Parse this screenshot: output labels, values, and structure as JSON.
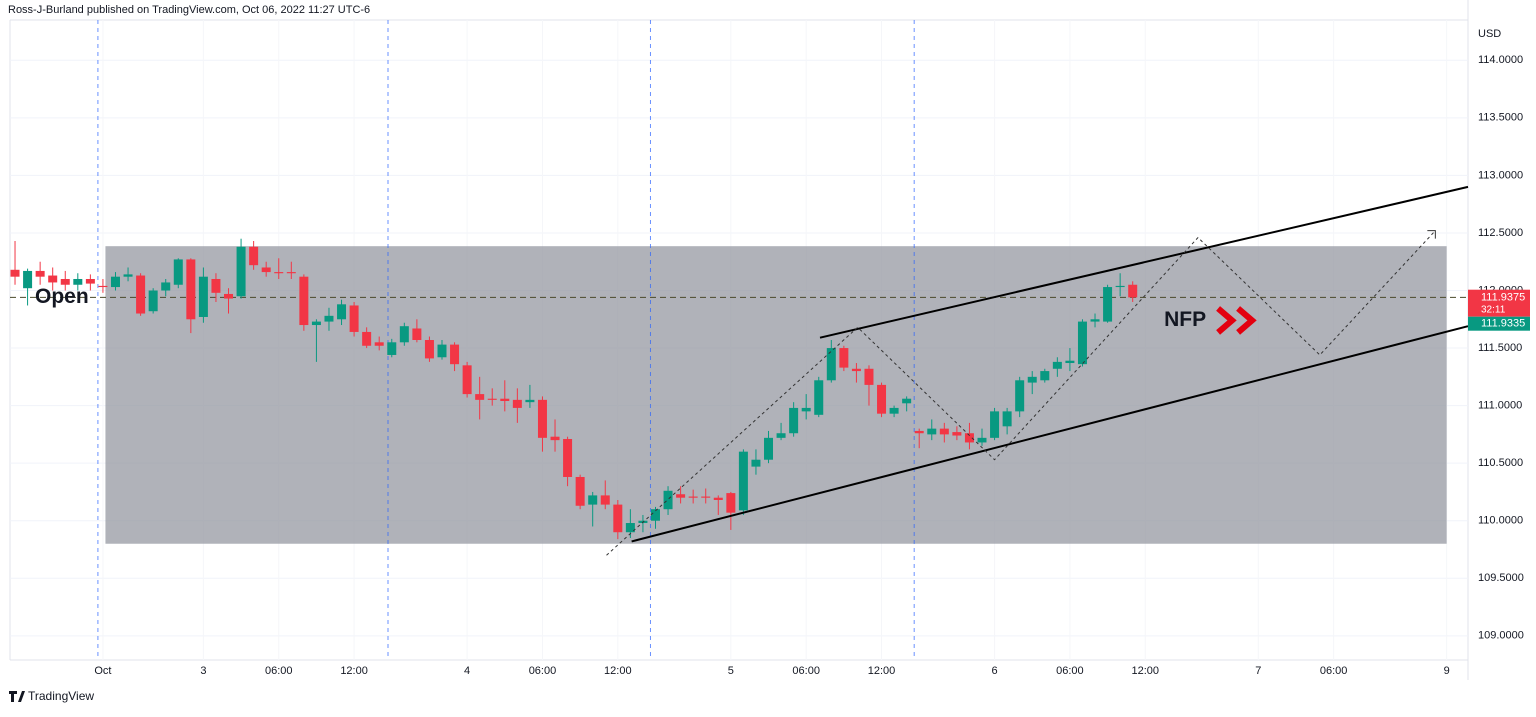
{
  "header": {
    "byline": "Ross-J-Burland published on TradingView.com, Oct 06, 2022 11:27 UTC-6",
    "brand": "TradingView"
  },
  "chart_data": {
    "type": "candlestick",
    "currency": "USD",
    "up_color": "#089981",
    "down_color": "#f23645",
    "open": [
      112.18,
      112.02,
      112.17,
      112.13,
      112.1,
      112.05,
      112.1,
      112.04,
      112.03,
      112.12,
      112.13,
      111.82,
      112.0,
      112.05,
      112.27,
      111.77,
      112.1,
      111.97,
      111.95,
      112.38,
      112.2,
      112.16,
      112.16,
      112.12,
      111.7,
      111.73,
      111.75,
      111.87,
      111.64,
      111.55,
      111.44,
      111.55,
      111.67,
      111.57,
      111.42,
      111.53,
      111.35,
      111.1,
      111.06,
      111.06,
      111.05,
      111.03,
      111.05,
      110.73,
      110.71,
      110.38,
      110.14,
      110.22,
      110.14,
      109.9,
      109.98,
      110.0,
      110.1,
      110.23,
      110.21,
      110.21,
      110.2,
      110.24,
      110.09,
      110.47,
      110.53,
      110.72,
      110.76,
      110.95,
      110.92,
      111.22,
      111.5,
      111.32,
      111.32,
      111.18,
      110.93,
      111.02,
      110.78,
      110.75,
      110.8,
      110.77,
      110.76,
      110.68,
      110.72,
      110.82,
      110.95,
      111.2,
      111.22,
      111.32,
      111.37,
      111.36,
      111.73,
      111.73,
      112.03,
      112.05
    ],
    "high": [
      112.43,
      112.19,
      112.25,
      112.2,
      112.17,
      112.15,
      112.14,
      112.1,
      112.16,
      112.2,
      112.15,
      112.02,
      112.1,
      112.28,
      112.28,
      112.2,
      112.15,
      112.02,
      112.45,
      112.43,
      112.25,
      112.28,
      112.25,
      112.14,
      111.75,
      111.85,
      111.92,
      111.9,
      111.68,
      111.6,
      111.58,
      111.72,
      111.75,
      111.6,
      111.57,
      111.55,
      111.38,
      111.25,
      111.15,
      111.22,
      111.15,
      111.18,
      111.08,
      110.88,
      110.73,
      110.4,
      110.25,
      110.35,
      110.18,
      110.1,
      110.05,
      110.12,
      110.3,
      110.3,
      110.27,
      110.28,
      110.22,
      110.25,
      110.62,
      110.62,
      110.78,
      110.85,
      111.03,
      111.1,
      111.25,
      111.57,
      111.52,
      111.37,
      111.35,
      111.2,
      111.0,
      111.08,
      110.8,
      110.88,
      110.85,
      110.82,
      110.85,
      110.8,
      110.98,
      110.98,
      111.25,
      111.3,
      111.32,
      111.42,
      111.5,
      111.75,
      111.8,
      112.05,
      112.15,
      112.08
    ],
    "low": [
      112.05,
      111.87,
      112.05,
      112.0,
      112.0,
      112.0,
      112.0,
      111.98,
      112.0,
      112.08,
      111.78,
      111.8,
      111.95,
      112.02,
      111.63,
      111.72,
      111.9,
      111.8,
      111.93,
      112.18,
      112.12,
      112.1,
      112.1,
      111.65,
      111.38,
      111.65,
      111.7,
      111.6,
      111.5,
      111.48,
      111.42,
      111.52,
      111.55,
      111.38,
      111.4,
      111.3,
      111.07,
      110.88,
      111.0,
      110.95,
      110.85,
      110.98,
      110.6,
      110.6,
      110.3,
      110.1,
      109.95,
      110.1,
      109.84,
      109.85,
      109.9,
      109.93,
      110.05,
      110.15,
      110.15,
      110.15,
      110.05,
      109.92,
      110.05,
      110.4,
      110.5,
      110.7,
      110.73,
      110.88,
      110.9,
      111.2,
      111.3,
      111.2,
      111.0,
      110.9,
      110.9,
      110.95,
      110.63,
      110.7,
      110.68,
      110.7,
      110.62,
      110.65,
      110.7,
      110.75,
      110.9,
      111.1,
      111.2,
      111.25,
      111.3,
      111.34,
      111.68,
      111.72,
      111.95,
      111.9
    ],
    "close": [
      112.12,
      112.17,
      112.12,
      112.07,
      112.05,
      112.1,
      112.06,
      112.03,
      112.12,
      112.14,
      111.8,
      112.0,
      112.07,
      112.27,
      111.75,
      112.12,
      111.98,
      111.93,
      112.38,
      112.22,
      112.16,
      112.15,
      112.15,
      111.7,
      111.73,
      111.78,
      111.88,
      111.64,
      111.52,
      111.52,
      111.55,
      111.69,
      111.57,
      111.41,
      111.53,
      111.36,
      111.1,
      111.05,
      111.05,
      111.04,
      110.98,
      111.05,
      110.72,
      110.7,
      110.38,
      110.13,
      110.22,
      110.14,
      109.9,
      109.98,
      110.0,
      110.1,
      110.26,
      110.2,
      110.2,
      110.2,
      110.18,
      110.07,
      110.6,
      110.53,
      110.72,
      110.76,
      110.98,
      110.98,
      111.22,
      111.5,
      111.33,
      111.3,
      111.18,
      110.93,
      110.98,
      111.06,
      110.76,
      110.8,
      110.75,
      110.74,
      110.68,
      110.72,
      110.95,
      110.95,
      111.22,
      111.25,
      111.3,
      111.38,
      111.39,
      111.73,
      111.75,
      112.03,
      112.04,
      111.94
    ],
    "xlim": [
      -0.4,
      115.7
    ],
    "ylim": [
      108.79,
      114.35
    ],
    "grid": true,
    "xticks": [
      {
        "value": 7,
        "label": "Oct"
      },
      {
        "value": 15,
        "label": "3"
      },
      {
        "value": 21,
        "label": "06:00"
      },
      {
        "value": 27,
        "label": "12:00"
      },
      {
        "value": 36,
        "label": "4"
      },
      {
        "value": 42,
        "label": "06:00"
      },
      {
        "value": 48,
        "label": "12:00"
      },
      {
        "value": 57,
        "label": "5"
      },
      {
        "value": 63,
        "label": "06:00"
      },
      {
        "value": 69,
        "label": "12:00"
      },
      {
        "value": 78,
        "label": "6"
      },
      {
        "value": 84,
        "label": "06:00"
      },
      {
        "value": 90,
        "label": "12:00"
      },
      {
        "value": 99,
        "label": "7"
      },
      {
        "value": 105,
        "label": "06:00"
      },
      {
        "value": 114,
        "label": "9"
      }
    ],
    "yticks": [
      {
        "value": 109,
        "label": "109.0000"
      },
      {
        "value": 109.5,
        "label": "109.5000"
      },
      {
        "value": 110,
        "label": "110.0000"
      },
      {
        "value": 110.5,
        "label": "110.5000"
      },
      {
        "value": 111,
        "label": "111.0000"
      },
      {
        "value": 111.5,
        "label": "111.5000"
      },
      {
        "value": 112,
        "label": "112.0000"
      },
      {
        "value": 112.5,
        "label": "112.5000"
      },
      {
        "value": 113,
        "label": "113.0000"
      },
      {
        "value": 113.5,
        "label": "113.5000"
      },
      {
        "value": 114,
        "label": "114.0000"
      }
    ],
    "last_price": 111.9375,
    "countdown": "32:11",
    "second_price": 111.9335,
    "zone": {
      "x": [
        7.2,
        114
      ],
      "y": [
        109.8,
        112.385
      ]
    },
    "session_lines": [
      6.6,
      29.7,
      50.6,
      71.6
    ],
    "open_level": {
      "value": 111.94,
      "label": "Open"
    },
    "trendlines": [
      {
        "x": [
          49.1,
          115.7
        ],
        "y": [
          109.82,
          111.69
        ]
      },
      {
        "x": [
          64.1,
          115.7
        ],
        "y": [
          111.59,
          112.9
        ]
      }
    ],
    "projection": {
      "x": [
        47.1,
        67.1,
        78,
        94.2,
        103.9,
        113.1
      ],
      "y": [
        109.7,
        111.68,
        110.53,
        112.46,
        111.44,
        112.52
      ]
    },
    "annotation": {
      "label": "NFP",
      "x": 91.5,
      "y": 111.74
    }
  }
}
